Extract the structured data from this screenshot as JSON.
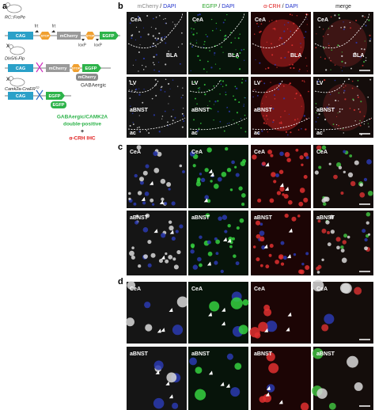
{
  "panel_letters": [
    "a",
    "b",
    "c",
    "d"
  ],
  "diagram": {
    "mice": [
      {
        "name": "RC::FrePe"
      },
      {
        "name": "Dlx5/6-Flp"
      },
      {
        "name": "Camk2a-CreER",
        "sup": "T2"
      }
    ],
    "cross": "x",
    "elements": {
      "cag": "CAG",
      "stop": "STOP",
      "mcherry": "mCherry",
      "egfp": "EGFP",
      "frt": "frt",
      "loxp": "loxP"
    },
    "gabaergic": "GABAergic",
    "result": [
      "GABAergic/CAMK2A",
      "double-positive"
    ],
    "plus": "+",
    "ihc": "α-CRH IHC"
  },
  "columns": [
    {
      "stain": "mCherry",
      "dapi": "DAPI"
    },
    {
      "stain": "EGFP",
      "dapi": "DAPI"
    },
    {
      "stain": "α-CRH",
      "dapi": "DAPI"
    },
    {
      "stain": "merge"
    }
  ],
  "separator": " / ",
  "regions": {
    "cea": "CeA",
    "bla": "BLA",
    "lv": "LV",
    "abnst": "aBNST",
    "ac": "ac"
  }
}
